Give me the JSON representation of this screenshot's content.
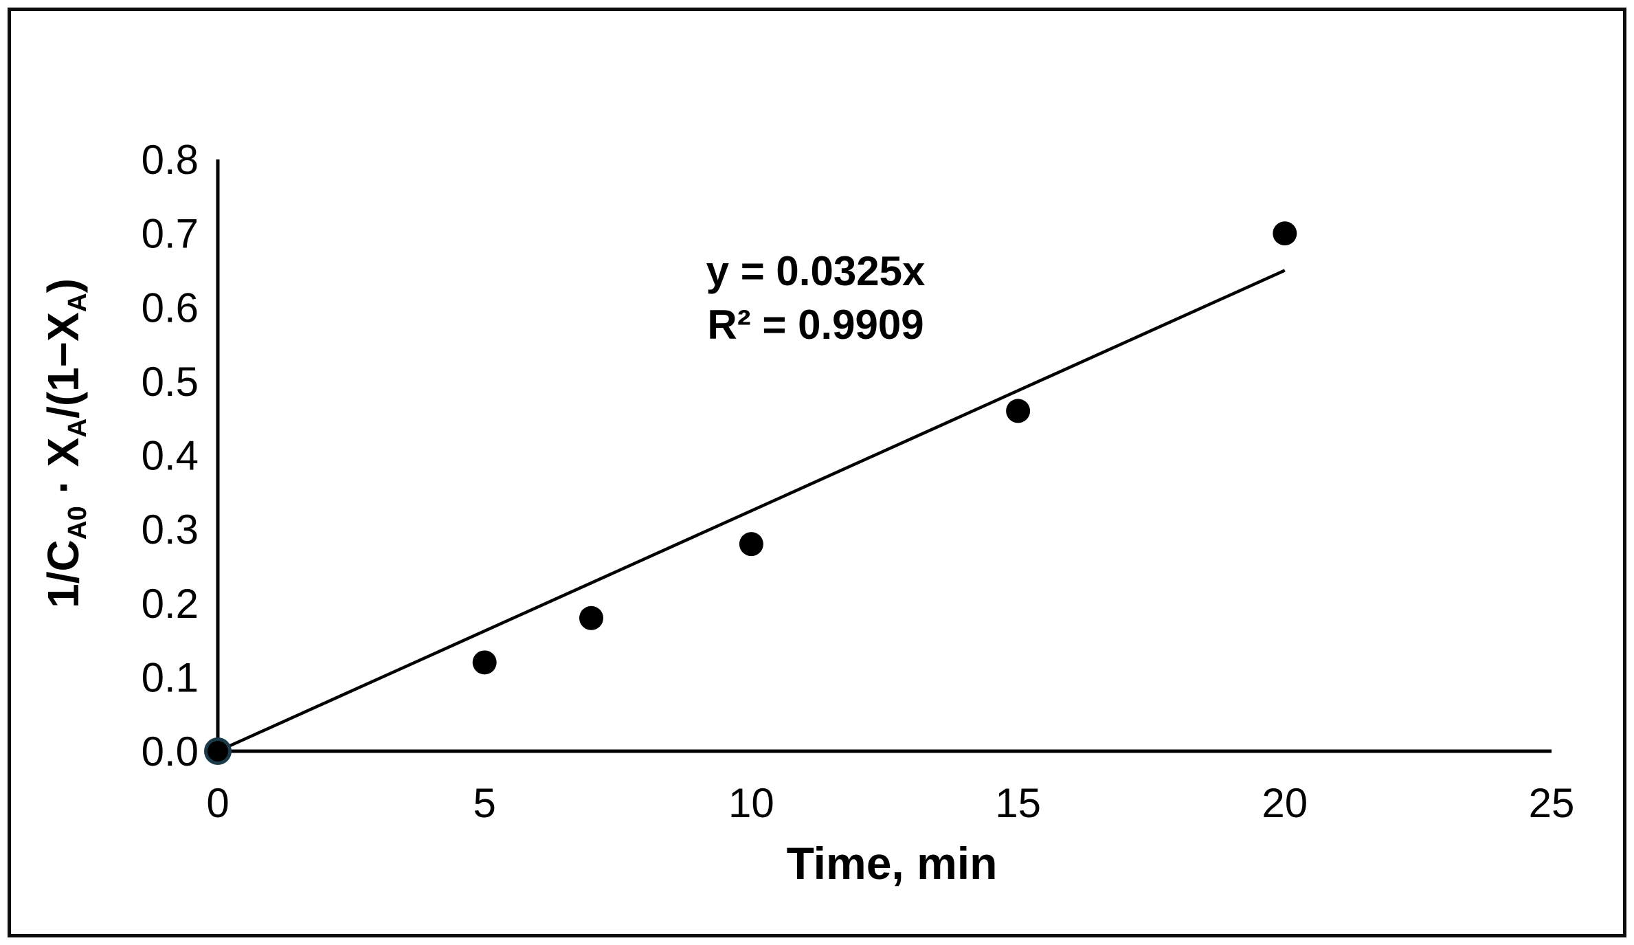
{
  "figure": {
    "ylabel_parts": [
      {
        "text": "1/C"
      },
      {
        "text": "A0",
        "sub": true
      },
      {
        "text": " · X"
      },
      {
        "text": "A",
        "sub": true
      },
      {
        "text": "/(1−X"
      },
      {
        "text": "A",
        "sub": true
      },
      {
        "text": ")"
      }
    ]
  },
  "chart_data": {
    "type": "scatter",
    "title": "",
    "xlabel": "Time, min",
    "ylabel": "1/CA0 · XA/(1−XA)",
    "x": [
      0,
      5,
      7,
      10,
      15,
      20
    ],
    "y": [
      0,
      0.12,
      0.18,
      0.28,
      0.46,
      0.7
    ],
    "xlim": [
      0,
      25
    ],
    "ylim": [
      0,
      0.8
    ],
    "x_ticks": [
      "0",
      "5",
      "10",
      "15",
      "20",
      "25"
    ],
    "y_ticks": [
      "0.0",
      "0.1",
      "0.2",
      "0.3",
      "0.4",
      "0.5",
      "0.6",
      "0.7",
      "0.8"
    ],
    "grid": false,
    "legend": false,
    "annotations": [
      "y = 0.0325x",
      "R² = 0.9909"
    ],
    "trendline": {
      "type": "linear",
      "slope": 0.0325,
      "intercept": 0,
      "x_start": 0,
      "x_end": 20,
      "r_squared": 0.9909
    },
    "marker": {
      "shape": "circle",
      "radius_px": 17.5,
      "color": "#000000"
    },
    "colors": {
      "axis": "#000000",
      "trendline": "#000000",
      "marker": "#000000",
      "origin_marker_ring": "#1b3a4a",
      "frame": "#0d0d0d",
      "background": "#ffffff",
      "text": "#000000"
    }
  }
}
